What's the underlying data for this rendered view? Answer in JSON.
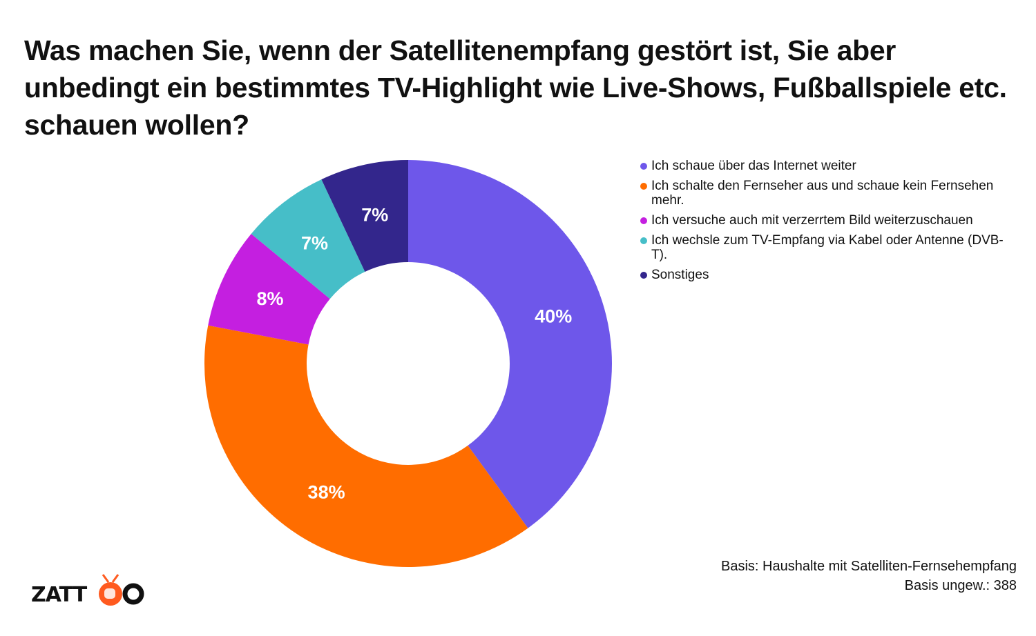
{
  "title": "Was machen Sie, wenn der Satellitenempfang gestört ist, Sie aber unbedingt ein bestimmtes TV-Highlight wie Live-Shows, Fußballspiele etc. schauen wollen?",
  "chart_data": {
    "type": "pie",
    "donut": true,
    "title": "Was machen Sie, wenn der Satellitenempfang gestört ist, Sie aber unbedingt ein bestimmtes TV-Highlight wie Live-Shows, Fußballspiele etc. schauen wollen?",
    "legend_position": "right",
    "slices": [
      {
        "label": "Ich schaue über das Internet weiter",
        "value": 40,
        "display": "40%",
        "color": "#6e57ea"
      },
      {
        "label": "Ich schalte den Fernseher aus und schaue kein Fernsehen mehr.",
        "value": 38,
        "display": "38%",
        "color": "#ff6d00"
      },
      {
        "label": "Ich versuche auch mit verzerrtem Bild weiterzuschauen",
        "value": 8,
        "display": "8%",
        "color": "#c41fe0"
      },
      {
        "label": "Ich wechsle zum TV-Empfang via Kabel oder Antenne (DVB-T).",
        "value": 7,
        "display": "7%",
        "color": "#46bec8"
      },
      {
        "label": "Sonstiges",
        "value": 7,
        "display": "7%",
        "color": "#33268c"
      }
    ]
  },
  "footer": {
    "basis": "Basis: Haushalte mit Satelliten-Fernsehempfang",
    "basis_n": "Basis ungew.: 388"
  },
  "logo": {
    "text": "ZATTOO",
    "accent": "#ff5a1f"
  }
}
